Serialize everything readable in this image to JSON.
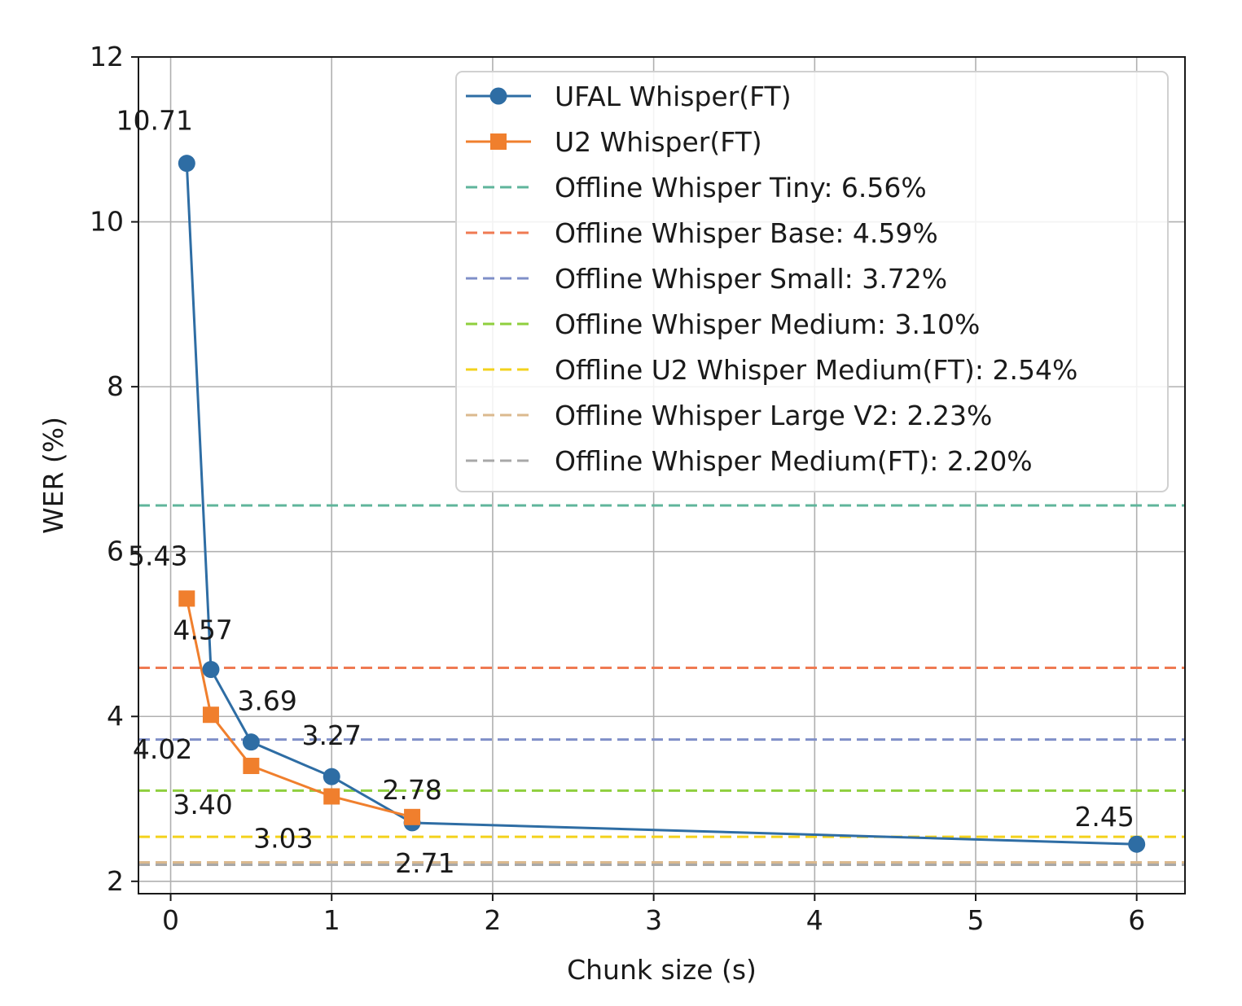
{
  "chart_data": {
    "type": "line",
    "title": "",
    "xlabel": "Chunk size (s)",
    "ylabel": "WER (%)",
    "xlim": [
      -0.2,
      6.3
    ],
    "ylim": [
      1.85,
      12.0
    ],
    "xticks": [
      0,
      1,
      2,
      3,
      4,
      5,
      6
    ],
    "xtick_labels": [
      "0",
      "1",
      "2",
      "3",
      "4",
      "5",
      "6"
    ],
    "yticks": [
      2,
      4,
      6,
      8,
      10,
      12
    ],
    "ytick_labels": [
      "2",
      "4",
      "6",
      "8",
      "10",
      "12"
    ],
    "grid": true,
    "legend_position": "top-right",
    "series": [
      {
        "name": "UFAL Whisper(FT)",
        "marker": "circle",
        "color": "#2e6da4",
        "x": [
          0.1,
          0.25,
          0.5,
          1.0,
          1.5,
          6.0
        ],
        "y": [
          10.71,
          4.57,
          3.69,
          3.27,
          2.71,
          2.45
        ],
        "labels": [
          "10.71",
          "4.57",
          "3.69",
          "3.27",
          "2.71",
          "2.45"
        ]
      },
      {
        "name": "U2 Whisper(FT)",
        "marker": "square",
        "color": "#f07f2d",
        "x": [
          0.1,
          0.25,
          0.5,
          1.0,
          1.5
        ],
        "y": [
          5.43,
          4.02,
          3.4,
          3.03,
          2.78
        ],
        "labels": [
          "5.43",
          "4.02",
          "3.40",
          "3.03",
          "2.78"
        ]
      }
    ],
    "reference_lines": [
      {
        "name": "Offline Whisper Tiny: 6.56%",
        "y": 6.56,
        "color": "#5fb59b"
      },
      {
        "name": "Offline Whisper Base: 4.59%",
        "y": 4.59,
        "color": "#ef7a52"
      },
      {
        "name": "Offline Whisper Small: 3.72%",
        "y": 3.72,
        "color": "#7f8fc8"
      },
      {
        "name": "Offline Whisper Medium: 3.10%",
        "y": 3.1,
        "color": "#8fcf3e"
      },
      {
        "name": "Offline U2 Whisper Medium(FT): 2.54%",
        "y": 2.54,
        "color": "#f3d21c"
      },
      {
        "name": "Offline Whisper Large V2: 2.23%",
        "y": 2.23,
        "color": "#dbb98e"
      },
      {
        "name": "Offline Whisper Medium(FT): 2.20%",
        "y": 2.2,
        "color": "#a8a8a8"
      }
    ]
  }
}
